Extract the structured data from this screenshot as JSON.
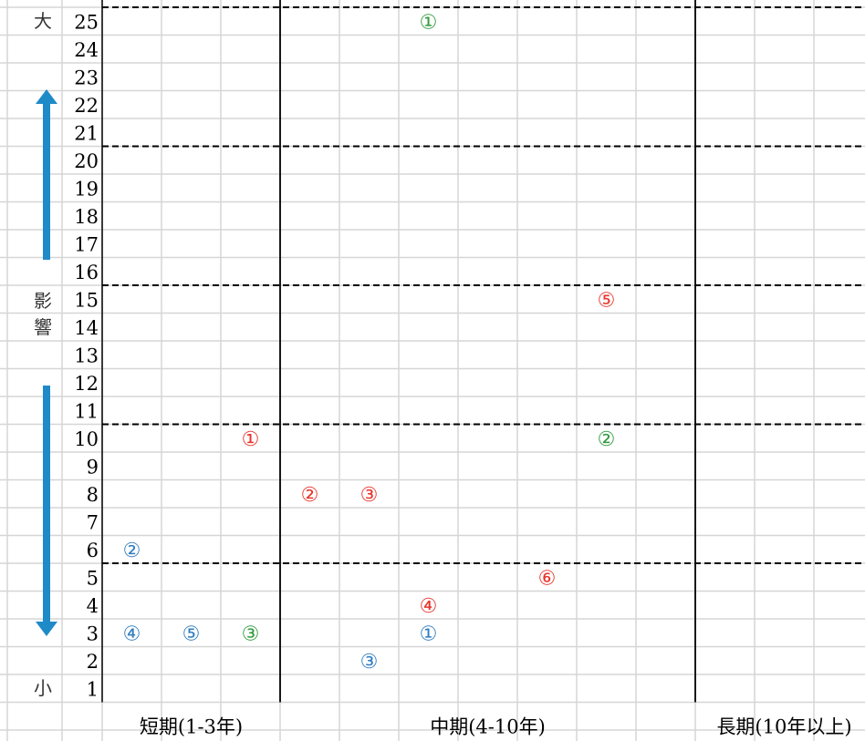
{
  "side_labels": {
    "top": "大",
    "middle_1": "影",
    "middle_2": "響",
    "bottom": "小"
  },
  "colors": {
    "red": "#e8332b",
    "green": "#2e9a3c",
    "blue": "#2f7dc1",
    "arrow": "#1f8ac8"
  },
  "chart_data": {
    "type": "scatter",
    "title": "",
    "xlabel": "",
    "ylabel": "",
    "ylim": [
      1,
      25
    ],
    "y_ticks": [
      "1",
      "2",
      "3",
      "4",
      "5",
      "6",
      "7",
      "8",
      "9",
      "10",
      "11",
      "12",
      "13",
      "14",
      "15",
      "16",
      "17",
      "18",
      "19",
      "20",
      "21",
      "22",
      "23",
      "24",
      "25"
    ],
    "x_columns": 13,
    "x_categories": [
      {
        "label": "短期(1-3年)",
        "from": 1,
        "to": 3
      },
      {
        "label": "中期(4-10年)",
        "from": 4,
        "to": 10
      },
      {
        "label": "長期(10年以上)",
        "from": 11,
        "to": 13
      }
    ],
    "grid": true,
    "horizontal_dashed_thresholds": [
      5.5,
      10.5,
      15.5,
      20.5,
      25.5
    ],
    "series": [
      {
        "color": "red",
        "points": [
          {
            "label": "①",
            "x": 3,
            "y": 10
          },
          {
            "label": "②",
            "x": 4,
            "y": 8
          },
          {
            "label": "③",
            "x": 5,
            "y": 8
          },
          {
            "label": "④",
            "x": 6,
            "y": 4
          },
          {
            "label": "⑤",
            "x": 9,
            "y": 15
          },
          {
            "label": "⑥",
            "x": 8,
            "y": 5
          }
        ]
      },
      {
        "color": "green",
        "points": [
          {
            "label": "①",
            "x": 6,
            "y": 25
          },
          {
            "label": "②",
            "x": 9,
            "y": 10
          },
          {
            "label": "③",
            "x": 3,
            "y": 3
          }
        ]
      },
      {
        "color": "blue",
        "points": [
          {
            "label": "①",
            "x": 6,
            "y": 3
          },
          {
            "label": "②",
            "x": 1,
            "y": 6
          },
          {
            "label": "③",
            "x": 5,
            "y": 2
          },
          {
            "label": "④",
            "x": 1,
            "y": 3
          },
          {
            "label": "⑤",
            "x": 2,
            "y": 3
          }
        ]
      }
    ]
  }
}
